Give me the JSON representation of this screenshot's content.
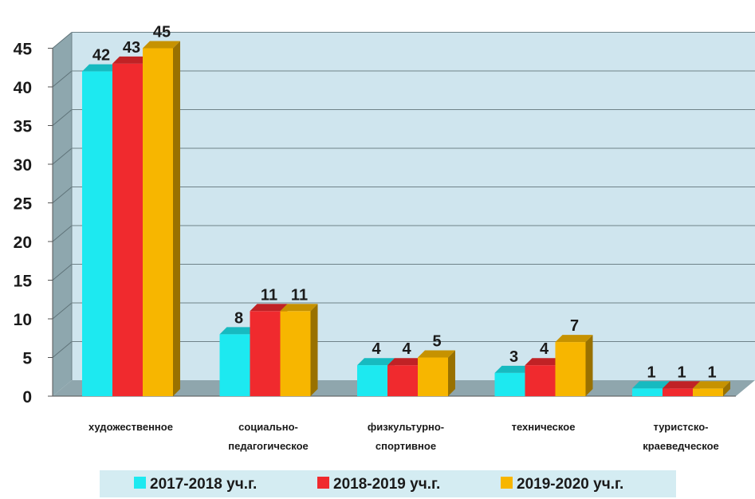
{
  "chart_data": {
    "type": "bar",
    "categories": [
      [
        "художественное"
      ],
      [
        "социально-",
        "педагогическое"
      ],
      [
        "физкультурно-",
        "спортивное"
      ],
      [
        "техническое"
      ],
      [
        "туристско-",
        "краеведческое"
      ]
    ],
    "series": [
      {
        "name": "2017-2018 уч.г.",
        "values": [
          42,
          8,
          4,
          3,
          1
        ],
        "color": "#1de9f0"
      },
      {
        "name": "2018-2019 уч.г.",
        "values": [
          43,
          11,
          4,
          4,
          1
        ],
        "color": "#f02a2e"
      },
      {
        "name": "2019-2020 уч.г.",
        "values": [
          45,
          11,
          5,
          7,
          1
        ],
        "color": "#f7b600"
      }
    ],
    "y_ticks": [
      "0",
      "5",
      "10",
      "15",
      "20",
      "25",
      "30",
      "35",
      "40",
      "45"
    ],
    "ylim": [
      0,
      45
    ],
    "grid": true,
    "legend_position": "bottom",
    "colors": {
      "wall": "#cfe5ee",
      "wall_side": "#8ea7ae",
      "floor": "#8fa6ad",
      "legend_bg": "#d4ecf2"
    }
  }
}
